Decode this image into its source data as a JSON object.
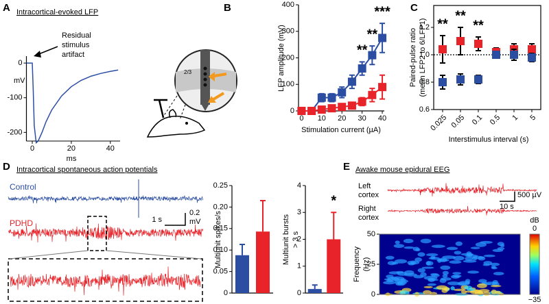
{
  "panel_labels": [
    "A",
    "B",
    "C",
    "D",
    "E"
  ],
  "panel_a": {
    "annotation": [
      "Residual",
      "stimulus",
      "artifact"
    ],
    "inset_label": "2/3"
  },
  "panel_d": {
    "title": "Intracortical spontaneous action potentials",
    "control": "Control",
    "pdhd": "PDHD",
    "scale_time": "1 s",
    "scale_amp": [
      "0.2",
      "mV"
    ]
  },
  "panel_e": {
    "title": "Awake mouse epidural EEG",
    "left": [
      "Left",
      "cortex"
    ],
    "right": [
      "Right",
      "cortex"
    ],
    "scale_amp": "500 µV",
    "scale_time": "10 s"
  },
  "chart_data": [
    {
      "type": "line",
      "title": "Intracortical-evoked LFP",
      "xlabel": "ms",
      "ylabel": "mV",
      "color": "#2b4ea2",
      "x": [
        -3,
        0,
        0.5,
        1,
        2,
        3,
        5,
        7,
        10,
        15,
        20,
        25,
        30,
        35,
        40,
        44
      ],
      "values": [
        0,
        0,
        -80,
        -180,
        -230,
        -225,
        -200,
        -170,
        -135,
        -95,
        -68,
        -50,
        -38,
        -30,
        -24,
        -20
      ],
      "xlim": [
        -3,
        45
      ],
      "xticks": [
        0,
        20,
        40
      ],
      "ylim": [
        -225,
        20
      ],
      "yticks": [
        0,
        -100,
        -200
      ]
    },
    {
      "type": "line",
      "xlabel": "Stimulation current  (µA)",
      "ylabel": [
        "LFP amplitude (mV)"
      ],
      "x": [
        0,
        5,
        10,
        15,
        20,
        25,
        30,
        35,
        40
      ],
      "series": [
        {
          "color": "#2b4ea2",
          "values": [
            0,
            0,
            50,
            50,
            70,
            110,
            160,
            210,
            275
          ],
          "errors": [
            0,
            0,
            15,
            15,
            20,
            25,
            25,
            35,
            55
          ]
        },
        {
          "color": "#e8242a",
          "values": [
            0,
            0,
            5,
            10,
            15,
            20,
            35,
            60,
            90
          ],
          "errors": [
            0,
            0,
            5,
            5,
            8,
            10,
            15,
            25,
            45
          ]
        }
      ],
      "xlim": [
        -1.5,
        41
      ],
      "xticks": [
        0,
        10,
        20,
        30,
        40
      ],
      "ylim": [
        0,
        400
      ],
      "yticks": [
        0,
        100,
        200,
        300,
        400
      ],
      "annotations": [
        {
          "text": "**",
          "x": 30
        },
        {
          "text": "**",
          "x": 35
        },
        {
          "text": "***",
          "x": 40
        }
      ]
    },
    {
      "type": "scatter",
      "xlabel": "Interstimulus interval (s)",
      "ylabel": [
        "Paired-pulse ratio",
        "(mean LFP2 to 6/LFP1)"
      ],
      "frame": true,
      "hline": 1,
      "categories": [
        "0.025",
        "0.05",
        "0.1",
        "0.5",
        "1",
        "5"
      ],
      "series": [
        {
          "color": "#e8242a",
          "values": [
            1.04,
            1.1,
            1.08,
            1.02,
            1.04,
            1.04
          ],
          "errors": [
            0.1,
            0.1,
            0.05,
            0.03,
            0.04,
            0.04
          ]
        },
        {
          "color": "#2b4ea2",
          "values": [
            0.8,
            0.82,
            0.82,
            1.0,
            1.0,
            0.98
          ],
          "errors": [
            0.05,
            0.04,
            0.03,
            0.02,
            0.04,
            0.03
          ]
        }
      ],
      "ylim": [
        0.6,
        1.36
      ],
      "yticks": [
        0.6,
        0.8,
        {
          "value": 1,
          "label": "1.0"
        },
        1.2
      ],
      "annotations": [
        {
          "text": "**",
          "x": "0.025"
        },
        {
          "text": "**",
          "x": "0.05"
        },
        {
          "text": "**",
          "x": "0.1"
        }
      ]
    },
    {
      "type": "bar",
      "ylabel": [
        "Multiunit spikes/s"
      ],
      "categories": [
        null,
        null
      ],
      "values": [
        0.088,
        0.143
      ],
      "errors": [
        0.025,
        0.072
      ],
      "colors": [
        "#2b4ea2",
        "#e8242a"
      ],
      "ylim": [
        0,
        0.25
      ],
      "yticks": [
        0,
        0.05,
        {
          "value": 0.1,
          "label": "0.10"
        },
        0.15,
        {
          "value": 0.2,
          "label": "0.20"
        },
        0.25
      ]
    },
    {
      "type": "bar",
      "ylabel": [
        "Multiunit bursts",
        "> 3 s"
      ],
      "categories": [
        null,
        null
      ],
      "values": [
        0.15,
        2.0
      ],
      "errors": [
        0.15,
        1.0
      ],
      "colors": [
        "#2b4ea2",
        "#e8242a"
      ],
      "ylim": [
        0,
        4
      ],
      "yticks": [
        0,
        1,
        2,
        3,
        4
      ],
      "annotations": [
        {
          "text": "*"
        }
      ]
    },
    {
      "type": "heatmap",
      "ylabel": [
        "Frequency",
        "(Hz)"
      ],
      "ylim": [
        0,
        50
      ],
      "yticks": [
        0,
        25,
        50
      ],
      "colorbar_label": "dB",
      "clim": [
        -35,
        0
      ],
      "cticks": [
        {
          "value": -35,
          "label": "−35"
        },
        0
      ]
    }
  ]
}
